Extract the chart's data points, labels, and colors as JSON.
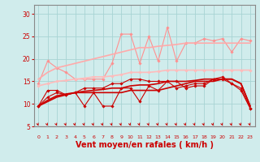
{
  "x": [
    0,
    1,
    2,
    3,
    4,
    5,
    6,
    7,
    8,
    9,
    10,
    11,
    12,
    13,
    14,
    15,
    16,
    17,
    18,
    19,
    20,
    21,
    22,
    23
  ],
  "background_color": "#d0ecec",
  "grid_color": "#a8d4d4",
  "xlabel": "Vent moyen/en rafales ( km/h )",
  "xlabel_color": "#cc0000",
  "xlabel_fontsize": 7,
  "ylim": [
    5,
    32
  ],
  "yticks": [
    5,
    10,
    15,
    20,
    25,
    30
  ],
  "series": [
    {
      "name": "rafales_upper_jagged",
      "color": "#ff9090",
      "linewidth": 0.8,
      "marker": "D",
      "markersize": 1.8,
      "values": [
        14.5,
        19.5,
        18.0,
        17.0,
        15.5,
        15.5,
        15.5,
        15.5,
        19.0,
        25.5,
        25.5,
        19.0,
        25.0,
        19.5,
        27.0,
        19.5,
        23.5,
        23.5,
        24.5,
        24.0,
        24.5,
        21.5,
        24.5,
        24.0
      ]
    },
    {
      "name": "trend_upper",
      "color": "#ffaaaa",
      "linewidth": 1.2,
      "marker": null,
      "markersize": 0,
      "values": [
        15.5,
        17.0,
        18.0,
        18.5,
        19.0,
        19.5,
        20.0,
        20.5,
        21.0,
        21.5,
        22.0,
        22.5,
        22.5,
        22.8,
        23.0,
        23.2,
        23.5,
        23.5,
        23.5,
        23.5,
        23.5,
        23.5,
        23.5,
        23.5
      ]
    },
    {
      "name": "trend_mid",
      "color": "#ffbbbb",
      "linewidth": 1.2,
      "marker": "D",
      "markersize": 1.8,
      "values": [
        14.0,
        14.5,
        15.0,
        15.2,
        15.5,
        15.7,
        16.0,
        16.0,
        16.2,
        16.5,
        17.0,
        17.0,
        17.0,
        17.2,
        17.5,
        17.5,
        17.5,
        17.5,
        17.5,
        17.5,
        17.5,
        17.5,
        17.5,
        17.5
      ]
    },
    {
      "name": "vent_moyen_smooth",
      "color": "#cc0000",
      "linewidth": 1.2,
      "marker": null,
      "markersize": 0,
      "values": [
        9.5,
        10.5,
        11.5,
        12.0,
        12.5,
        12.5,
        12.5,
        12.5,
        12.5,
        12.5,
        13.0,
        13.0,
        13.0,
        13.0,
        13.5,
        14.0,
        14.5,
        15.0,
        15.0,
        15.0,
        15.5,
        15.5,
        14.5,
        9.5
      ]
    },
    {
      "name": "rafales_lower_smooth",
      "color": "#cc0000",
      "linewidth": 1.2,
      "marker": null,
      "markersize": 0,
      "values": [
        9.5,
        10.8,
        11.8,
        12.2,
        12.5,
        12.8,
        13.0,
        13.2,
        13.5,
        13.5,
        14.0,
        14.2,
        14.2,
        14.5,
        15.0,
        15.0,
        15.0,
        15.2,
        15.5,
        15.5,
        15.5,
        15.5,
        14.5,
        9.5
      ]
    },
    {
      "name": "vent_moyen_jagged",
      "color": "#cc0000",
      "linewidth": 0.8,
      "marker": "D",
      "markersize": 1.8,
      "values": [
        9.5,
        11.5,
        12.5,
        12.0,
        12.5,
        9.5,
        12.5,
        9.5,
        9.5,
        13.5,
        13.5,
        10.5,
        14.0,
        13.0,
        15.0,
        15.0,
        13.5,
        14.0,
        14.0,
        15.5,
        16.0,
        14.5,
        13.0,
        9.0
      ]
    },
    {
      "name": "rafales_lower_jagged",
      "color": "#cc0000",
      "linewidth": 0.8,
      "marker": "D",
      "markersize": 1.8,
      "values": [
        9.5,
        13.0,
        13.0,
        12.0,
        12.5,
        13.5,
        13.5,
        13.5,
        14.5,
        14.5,
        15.5,
        15.5,
        15.0,
        15.0,
        15.0,
        13.5,
        14.0,
        14.5,
        14.5,
        15.5,
        15.5,
        14.5,
        13.5,
        9.0
      ]
    }
  ],
  "arrow_color": "#cc0000",
  "tick_color": "#cc0000",
  "spine_color": "#888888"
}
